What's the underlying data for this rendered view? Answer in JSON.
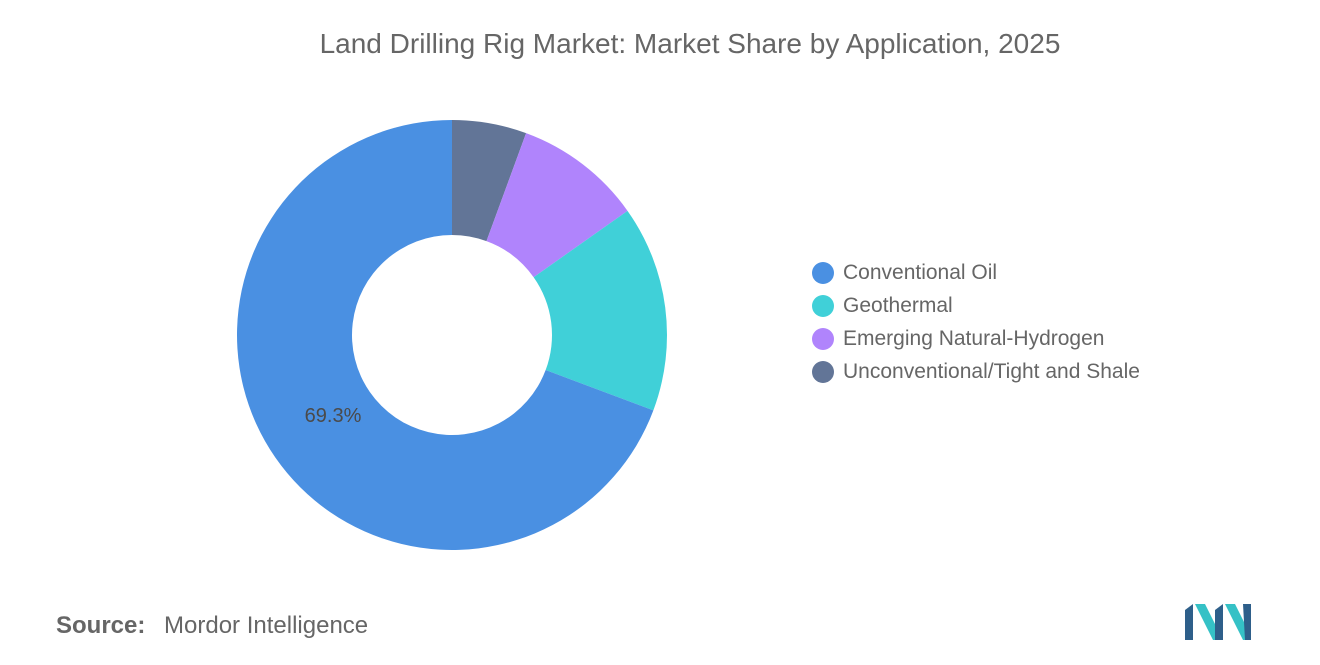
{
  "chart_data": {
    "type": "pie",
    "title": "Land Drilling Rig Market: Market Share by Application, 2025",
    "categories": [
      "Conventional Oil",
      "Geothermal",
      "Emerging Natural-Hydrogen",
      "Unconventional/Tight and Shale"
    ],
    "values": [
      69.3,
      15.5,
      9.6,
      5.6
    ],
    "colors": [
      "#4a90e2",
      "#40d0d8",
      "#b084fc",
      "#627597"
    ],
    "data_labels": [
      "69.3%",
      "",
      "",
      ""
    ],
    "legend_position": "right",
    "donut": true
  },
  "source": {
    "label": "Source:",
    "value": "Mordor Intelligence"
  },
  "logo": {
    "icon": "mordor-intelligence-logo",
    "colors": [
      "#2e5f8a",
      "#35c1c6"
    ]
  }
}
